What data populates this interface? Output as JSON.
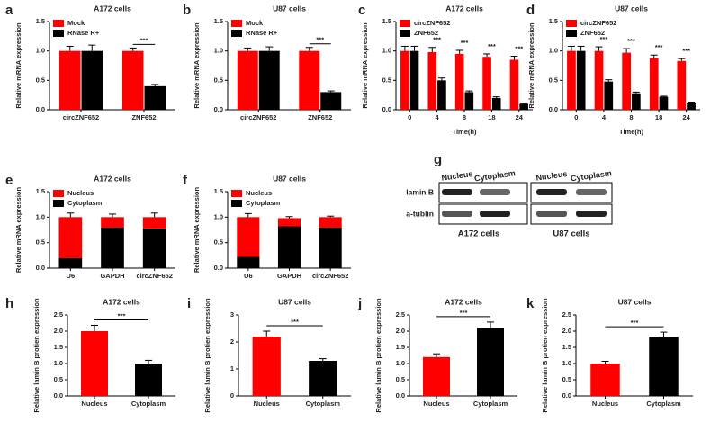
{
  "chart_data": [
    {
      "panel": "a",
      "type": "bar",
      "title": "A172 cells",
      "ylabel": "Relative mRNA expression",
      "categories": [
        "circZNF652",
        "ZNF652"
      ],
      "series": [
        {
          "name": "Mock",
          "color": "#ff0000",
          "values": [
            1.0,
            1.0
          ],
          "errors": [
            0.08,
            0.05
          ]
        },
        {
          "name": "RNase R+",
          "color": "#000000",
          "values": [
            1.0,
            0.4
          ],
          "errors": [
            0.1,
            0.03
          ]
        }
      ],
      "significance": [
        null,
        "***"
      ],
      "legend": "upper left",
      "ylim": [
        0,
        1.5
      ],
      "yticks": [
        {
          "value": 0,
          "label": "0.0"
        },
        0.5,
        {
          "value": 1,
          "label": "1.0"
        },
        1.5
      ]
    },
    {
      "panel": "b",
      "type": "bar",
      "title": "U87 cells",
      "ylabel": "Relative mRNA expression",
      "categories": [
        "circZNF652",
        "ZNF652"
      ],
      "series": [
        {
          "name": "Mock",
          "color": "#ff0000",
          "values": [
            1.0,
            1.0
          ],
          "errors": [
            0.05,
            0.06
          ]
        },
        {
          "name": "RNase R+",
          "color": "#000000",
          "values": [
            1.0,
            0.3
          ],
          "errors": [
            0.07,
            0.02
          ]
        }
      ],
      "significance": [
        null,
        "***"
      ],
      "legend": "upper left",
      "ylim": [
        0,
        1.5
      ],
      "yticks": [
        {
          "value": 0,
          "label": "0.0"
        },
        0.5,
        {
          "value": 1,
          "label": "1.0"
        },
        1.5
      ]
    },
    {
      "panel": "c",
      "type": "bar",
      "title": "A172 cells",
      "ylabel": "Relative mRNA expression",
      "xlabel": "Time(h)",
      "categories": [
        "0",
        "4",
        "8",
        "18",
        "24"
      ],
      "series": [
        {
          "name": "circZNF652",
          "color": "#ff0000",
          "values": [
            1.0,
            0.98,
            0.95,
            0.9,
            0.85
          ],
          "errors": [
            0.08,
            0.08,
            0.06,
            0.05,
            0.06
          ]
        },
        {
          "name": "ZNF652",
          "color": "#000000",
          "values": [
            1.0,
            0.5,
            0.3,
            0.2,
            0.1
          ],
          "errors": [
            0.08,
            0.04,
            0.02,
            0.02,
            0.01
          ]
        }
      ],
      "significance": [
        null,
        "***",
        "***",
        "***",
        "***"
      ],
      "legend": "upper left",
      "ylim": [
        0,
        1.5
      ],
      "yticks": [
        {
          "value": 0,
          "label": "0.0"
        },
        0.5,
        {
          "value": 1,
          "label": "1.0"
        },
        1.5
      ]
    },
    {
      "panel": "d",
      "type": "bar",
      "title": "U87 cells",
      "ylabel": "Relative mRNA expression",
      "xlabel": "Time(h)",
      "categories": [
        "0",
        "4",
        "8",
        "18",
        "24"
      ],
      "series": [
        {
          "name": "circZNF652",
          "color": "#ff0000",
          "values": [
            1.0,
            1.0,
            0.97,
            0.88,
            0.83
          ],
          "errors": [
            0.08,
            0.07,
            0.07,
            0.05,
            0.04
          ]
        },
        {
          "name": "ZNF652",
          "color": "#000000",
          "values": [
            1.0,
            0.48,
            0.28,
            0.22,
            0.12
          ],
          "errors": [
            0.08,
            0.03,
            0.02,
            0.01,
            0.01
          ]
        }
      ],
      "significance": [
        null,
        "***",
        "***",
        "***",
        "***"
      ],
      "legend": "upper left",
      "ylim": [
        0,
        1.5
      ],
      "yticks": [
        {
          "value": 0,
          "label": "0.0"
        },
        0.5,
        {
          "value": 1,
          "label": "1.0"
        },
        1.5
      ]
    },
    {
      "panel": "e",
      "type": "stacked_bar",
      "title": "A172 cells",
      "ylabel": "Relative mRNA expression",
      "categories": [
        "U6",
        "GAPDH",
        "circZNF652"
      ],
      "series": [
        {
          "name": "Nucleus",
          "color": "#ff0000",
          "values": [
            0.8,
            0.2,
            0.22
          ],
          "errors": [
            0.08,
            0.06,
            0.08
          ]
        },
        {
          "name": "Cytoplasm",
          "color": "#000000",
          "values": [
            0.2,
            0.8,
            0.78
          ],
          "errors": [
            null,
            0.08,
            0.07
          ]
        }
      ],
      "legend": "upper left",
      "ylim": [
        0,
        1.5
      ],
      "yticks": [
        {
          "value": 0,
          "label": "0.0"
        },
        0.5,
        {
          "value": 1,
          "label": "1.0"
        },
        1.5
      ]
    },
    {
      "panel": "f",
      "type": "stacked_bar",
      "title": "U87 cells",
      "ylabel": "Relative mRNA expression",
      "categories": [
        "U6",
        "GAPDH",
        "circZNF652"
      ],
      "series": [
        {
          "name": "Nucleus",
          "color": "#ff0000",
          "values": [
            0.78,
            0.16,
            0.2
          ],
          "errors": [
            0.07,
            0.03,
            0.02
          ]
        },
        {
          "name": "Cytoplasm",
          "color": "#000000",
          "values": [
            0.22,
            0.82,
            0.8
          ],
          "errors": [
            null,
            0.08,
            0.08
          ]
        }
      ],
      "legend": "upper left",
      "ylim": [
        0,
        1.5
      ],
      "yticks": [
        {
          "value": 0,
          "label": "0.0"
        },
        0.5,
        {
          "value": 1,
          "label": "1.0"
        },
        1.5
      ]
    },
    {
      "panel": "h",
      "type": "bar",
      "title": "A172 cells",
      "ylabel": "Relative lamin B protien expression",
      "categories": [
        "Nucleus",
        "Cytoplasm"
      ],
      "values": [
        2.0,
        1.0
      ],
      "errors": [
        0.18,
        0.1
      ],
      "colors": [
        "#ff0000",
        "#000000"
      ],
      "significance": "***",
      "ylim": [
        0,
        2.5
      ],
      "yticks": [
        {
          "value": 0,
          "label": "0.0"
        },
        0.5,
        {
          "value": 1,
          "label": "1.0"
        },
        1.5,
        {
          "value": 2,
          "label": "2.0"
        },
        2.5
      ]
    },
    {
      "panel": "i",
      "type": "bar",
      "title": "U87 cells",
      "ylabel": "Relative lamin B protien expression",
      "categories": [
        "Nucleus",
        "Cytoplasm"
      ],
      "values": [
        2.2,
        1.3
      ],
      "errors": [
        0.2,
        0.08
      ],
      "colors": [
        "#ff0000",
        "#000000"
      ],
      "significance": "***",
      "ylim": [
        0,
        3
      ],
      "yticks": [
        0,
        1,
        2,
        3
      ]
    },
    {
      "panel": "j",
      "type": "bar",
      "title": "A172 cells",
      "ylabel": "Relative lamin B protien expression",
      "categories": [
        "Nucleus",
        "Cytoplasm"
      ],
      "values": [
        1.2,
        2.1
      ],
      "errors": [
        0.1,
        0.18
      ],
      "colors": [
        "#ff0000",
        "#000000"
      ],
      "significance": "***",
      "ylim": [
        0,
        2.5
      ],
      "yticks": [
        {
          "value": 0,
          "label": "0.0"
        },
        0.5,
        {
          "value": 1,
          "label": "1.0"
        },
        1.5,
        {
          "value": 2,
          "label": "2.0"
        },
        2.5
      ]
    },
    {
      "panel": "k",
      "type": "bar",
      "title": "U87 cells",
      "ylabel": "Relative lamin B protien expression",
      "categories": [
        "Nucleus",
        "Cytoplasm"
      ],
      "values": [
        1.0,
        1.82
      ],
      "errors": [
        0.07,
        0.15
      ],
      "colors": [
        "#ff0000",
        "#000000"
      ],
      "significance": "***",
      "ylim": [
        0,
        2.5
      ],
      "yticks": [
        {
          "value": 0,
          "label": "0.0"
        },
        0.5,
        {
          "value": 1,
          "label": "1.0"
        },
        1.5,
        {
          "value": 2,
          "label": "2.0"
        },
        2.5
      ]
    }
  ],
  "blot": {
    "panel": "g",
    "lanes": [
      "Nucleus",
      "Cytoplasm",
      "Nucleus",
      "Cytoplasm"
    ],
    "rows": [
      "lamin B",
      "a-tublin"
    ],
    "groups": [
      "A172 cells",
      "U87 cells"
    ]
  }
}
